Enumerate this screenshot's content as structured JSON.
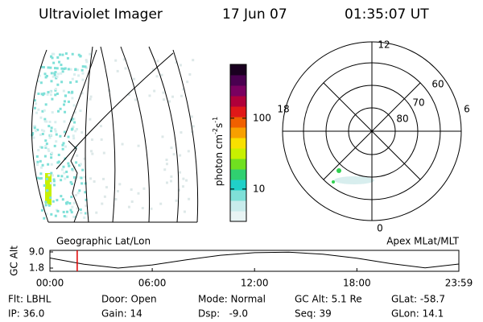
{
  "header": {
    "title": "Ultraviolet Imager",
    "date": "17 Jun 07",
    "time": "01:35:07 UT"
  },
  "colorbar": {
    "label": "photon cm",
    "exp1": "-2",
    "unit2": "s",
    "exp2": "-1",
    "range": [
      3.5,
      575
    ],
    "log": true,
    "ticks": [
      10,
      100
    ],
    "colors": [
      "#e8f4f4",
      "#c8ecec",
      "#7fe0d8",
      "#20d0c8",
      "#30d070",
      "#70e020",
      "#c8f000",
      "#f8e000",
      "#f8a000",
      "#f06000",
      "#e01818",
      "#b0003a",
      "#7a0060",
      "#4a0050",
      "#1a0020"
    ]
  },
  "geo_panel": {
    "label": "Geographic Lat/Lon"
  },
  "polar_panel": {
    "label": "Apex MLat/MLT",
    "mlt": [
      "12",
      "18",
      "6",
      "0"
    ],
    "mlat": [
      "60",
      "70",
      "80"
    ]
  },
  "altitude": {
    "ylabel": "GC Alt",
    "yticks": [
      {
        "value": 9.0,
        "label": "9.0"
      },
      {
        "value": 1.8,
        "label": "1.8"
      }
    ],
    "xticks": [
      {
        "value": 0,
        "label": "00:00"
      },
      {
        "value": 6,
        "label": "06:00"
      },
      {
        "value": 12,
        "label": "12:00"
      },
      {
        "value": 18,
        "label": "18:00"
      },
      {
        "value": 23.98,
        "label": "23:59"
      }
    ],
    "hours": [
      0,
      2,
      4,
      6,
      8,
      10,
      12,
      14,
      16,
      18,
      20,
      22,
      23.98
    ],
    "values": [
      6.3,
      3.5,
      1.8,
      3.2,
      5.5,
      7.5,
      8.7,
      8.9,
      8.0,
      6.2,
      3.8,
      1.9,
      3.6
    ],
    "marker": 1.6,
    "marker_color": "#e00000"
  },
  "info": [
    [
      "Flt: LBHL",
      "Door: Open",
      "Mode: Normal",
      "GC Alt: 5.1 Re",
      "GLat: -58.7"
    ],
    [
      "IP: 36.0",
      "Gain: 14",
      "Dsp:   -9.0",
      "Seq: 39",
      "GLon: 14.1"
    ]
  ]
}
